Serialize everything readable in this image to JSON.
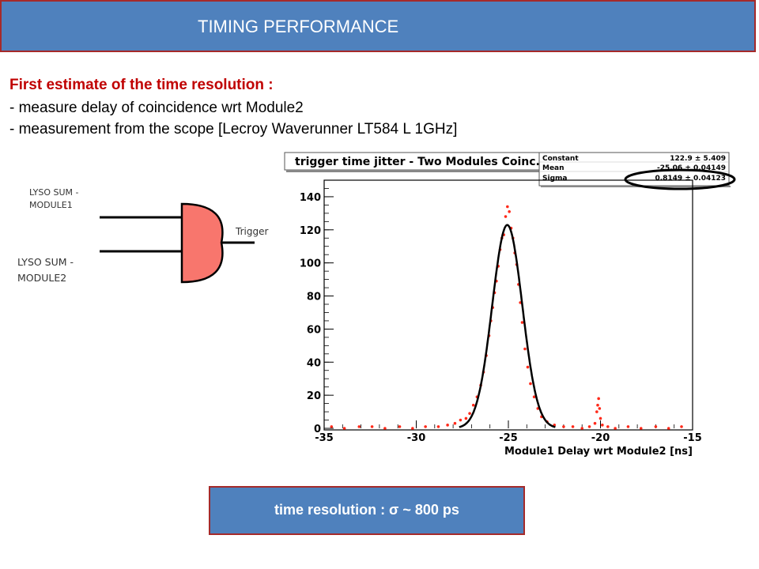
{
  "header": {
    "title": "TIMING PERFORMANCE"
  },
  "intro": {
    "heading": "First estimate of the time resolution :",
    "bullets": [
      "- measure delay of coincidence wrt Module2",
      "- measurement from the scope [Lecroy Waverunner LT584 L 1GHz]"
    ]
  },
  "schematic": {
    "input1_line1": "LYSO SUM -",
    "input1_line2": "MODULE1",
    "input2_line1": "LYSO SUM -",
    "input2_line2": "MODULE2",
    "output_label": "Trigger",
    "gate_fill": "#f8766d"
  },
  "chart_data": {
    "type": "scatter",
    "title": "trigger time jitter - Two Modules Coinc.",
    "xlabel": "Module1 Delay wrt Module2 [ns]",
    "ylabel": "",
    "xlim": [
      -35,
      -15
    ],
    "ylim": [
      0,
      150
    ],
    "xticks": [
      "-35",
      "-30",
      "-25",
      "-20",
      "-15"
    ],
    "yticks": [
      "0",
      "20",
      "40",
      "60",
      "80",
      "100",
      "120",
      "140"
    ],
    "stats": {
      "rows": [
        {
          "label": "Constant",
          "value": "122.9 ± 5.409"
        },
        {
          "label": "Mean",
          "value": "-25.06 ± 0.04149"
        },
        {
          "label": "Sigma",
          "value": "0.8149 ± 0.04123"
        }
      ],
      "highlighted": "Sigma"
    },
    "fit": {
      "function": "gaussian",
      "constant": 122.9,
      "mean": -25.06,
      "sigma": 0.8149,
      "color": "#000000"
    },
    "series": [
      {
        "color": "#ff2a1a",
        "x": [
          -34.6,
          -33.9,
          -33.1,
          -32.4,
          -31.7,
          -30.9,
          -30.2,
          -29.5,
          -28.8,
          -28.3,
          -27.9,
          -27.6,
          -27.3,
          -27.1,
          -26.9,
          -26.7,
          -26.5,
          -26.35,
          -26.2,
          -26.05,
          -25.95,
          -25.85,
          -25.75,
          -25.65,
          -25.55,
          -25.45,
          -25.35,
          -25.25,
          -25.15,
          -25.05,
          -24.95,
          -24.85,
          -24.75,
          -24.65,
          -24.55,
          -24.45,
          -24.35,
          -24.25,
          -24.1,
          -23.95,
          -23.8,
          -23.6,
          -23.4,
          -23.2,
          -22.9,
          -22.5,
          -22.0,
          -21.5,
          -21.0,
          -20.6,
          -20.3,
          -20.2,
          -20.15,
          -20.1,
          -20.05,
          -20.0,
          -19.9,
          -19.6,
          -19.2,
          -18.5,
          -17.8,
          -17.0,
          -16.3,
          -15.6
        ],
        "y": [
          1,
          0,
          1,
          1,
          0,
          1,
          0,
          1,
          1,
          2,
          3,
          5,
          6,
          9,
          14,
          19,
          26,
          34,
          44,
          56,
          65,
          73,
          82,
          89,
          98,
          108,
          115,
          117,
          128,
          134,
          131,
          121,
          115,
          106,
          99,
          87,
          76,
          64,
          48,
          37,
          27,
          19,
          12,
          7,
          4,
          2,
          1,
          1,
          0,
          1,
          3,
          10,
          14,
          18,
          12,
          6,
          2,
          1,
          0,
          1,
          0,
          1,
          0,
          1
        ]
      }
    ]
  },
  "result": {
    "text": "time resolution : σ ~ 800 ps"
  }
}
